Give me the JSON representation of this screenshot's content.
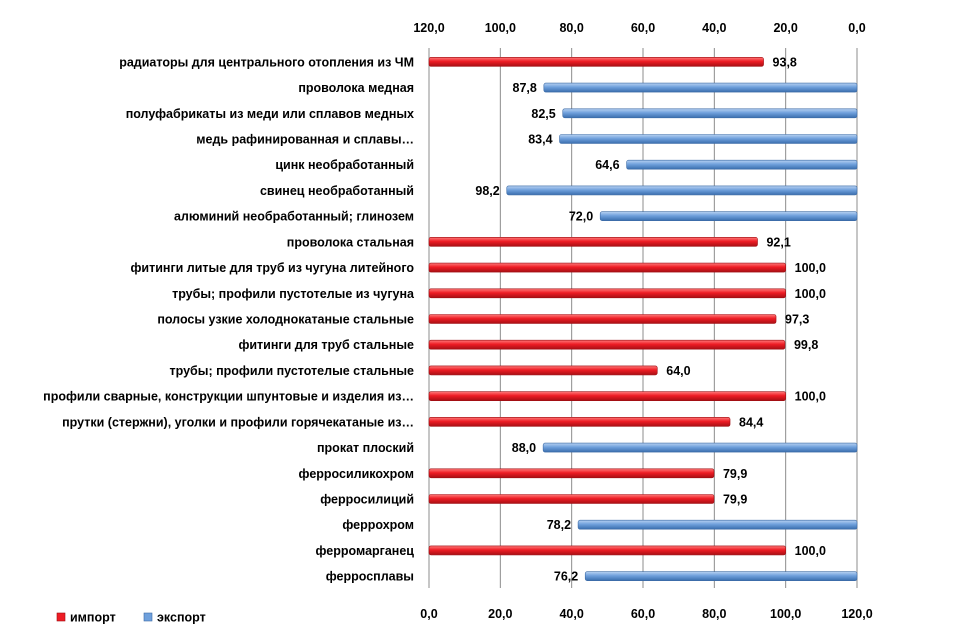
{
  "chart_data": {
    "type": "bar",
    "orientation": "horizontal",
    "title": "",
    "colors": {
      "import": "#ee1c24",
      "export": "#6fa0dc"
    },
    "legend": {
      "placement": "bottom-left",
      "items": [
        {
          "key": "import",
          "label": "импорт"
        },
        {
          "key": "export",
          "label": "экспорт"
        }
      ]
    },
    "axis_top": {
      "ticks": [
        "120,0",
        "100,0",
        "80,0",
        "60,0",
        "40,0",
        "20,0",
        "0,0"
      ],
      "range": [
        120,
        0
      ]
    },
    "axis_bottom": {
      "ticks": [
        "0,0",
        "20,0",
        "40,0",
        "60,0",
        "80,0",
        "100,0",
        "120,0"
      ],
      "range": [
        0,
        120
      ]
    },
    "grid": true,
    "items": [
      {
        "label": "радиаторы для центрального отопления из ЧМ",
        "series": "import",
        "value": 93.8,
        "value_label": "93,8"
      },
      {
        "label": "проволока медная",
        "series": "export",
        "value": 87.8,
        "value_label": "87,8"
      },
      {
        "label": "полуфабрикаты из меди или сплавов медных",
        "series": "export",
        "value": 82.5,
        "value_label": "82,5"
      },
      {
        "label": "медь рафинированная и сплавы…",
        "series": "export",
        "value": 83.4,
        "value_label": "83,4"
      },
      {
        "label": "цинк необработанный",
        "series": "export",
        "value": 64.6,
        "value_label": "64,6"
      },
      {
        "label": "свинец необработанный",
        "series": "export",
        "value": 98.2,
        "value_label": "98,2"
      },
      {
        "label": "алюминий необработанный; глинозем",
        "series": "export",
        "value": 72.0,
        "value_label": "72,0"
      },
      {
        "label": "проволока стальная",
        "series": "import",
        "value": 92.1,
        "value_label": "92,1"
      },
      {
        "label": "фитинги литые для труб из чугуна литейного",
        "series": "import",
        "value": 100.0,
        "value_label": "100,0"
      },
      {
        "label": "трубы; профили пустотелые из чугуна",
        "series": "import",
        "value": 100.0,
        "value_label": "100,0"
      },
      {
        "label": "полосы узкие холоднокатаные стальные",
        "series": "import",
        "value": 97.3,
        "value_label": "97,3"
      },
      {
        "label": "фитинги для труб стальные",
        "series": "import",
        "value": 99.8,
        "value_label": "99,8"
      },
      {
        "label": "трубы; профили пустотелые стальные",
        "series": "import",
        "value": 64.0,
        "value_label": "64,0"
      },
      {
        "label": "профили сварные, конструкции шпунтовые и изделия из…",
        "series": "import",
        "value": 100.0,
        "value_label": "100,0"
      },
      {
        "label": "прутки (стержни), уголки и профили горячекатаные из…",
        "series": "import",
        "value": 84.4,
        "value_label": "84,4"
      },
      {
        "label": "прокат плоский",
        "series": "export",
        "value": 88.0,
        "value_label": "88,0"
      },
      {
        "label": "ферросиликохром",
        "series": "import",
        "value": 79.9,
        "value_label": "79,9"
      },
      {
        "label": "ферросилиций",
        "series": "import",
        "value": 79.9,
        "value_label": "79,9"
      },
      {
        "label": "феррохром",
        "series": "export",
        "value": 78.2,
        "value_label": "78,2"
      },
      {
        "label": "ферромарганец",
        "series": "import",
        "value": 100.0,
        "value_label": "100,0"
      },
      {
        "label": "ферросплавы",
        "series": "export",
        "value": 76.2,
        "value_label": "76,2"
      }
    ]
  }
}
